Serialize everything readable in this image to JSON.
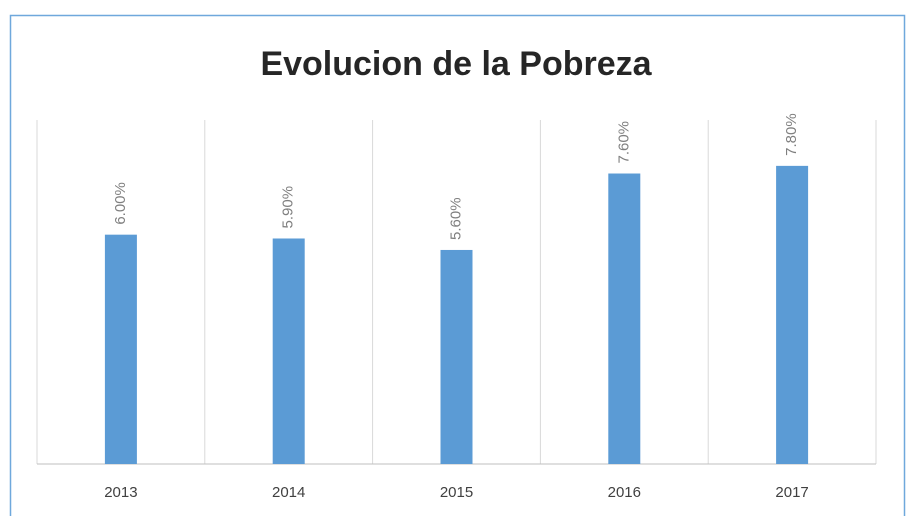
{
  "chart_data": {
    "type": "bar",
    "title": "Evolucion de la Pobreza",
    "categories": [
      "2013",
      "2014",
      "2015",
      "2016",
      "2017"
    ],
    "values": [
      6.0,
      5.9,
      5.6,
      7.6,
      7.8
    ],
    "value_labels": [
      "6.00%",
      "5.90%",
      "5.60%",
      "7.60%",
      "7.80%"
    ],
    "color": "#5b9bd5",
    "ylim": [
      0,
      9
    ]
  }
}
